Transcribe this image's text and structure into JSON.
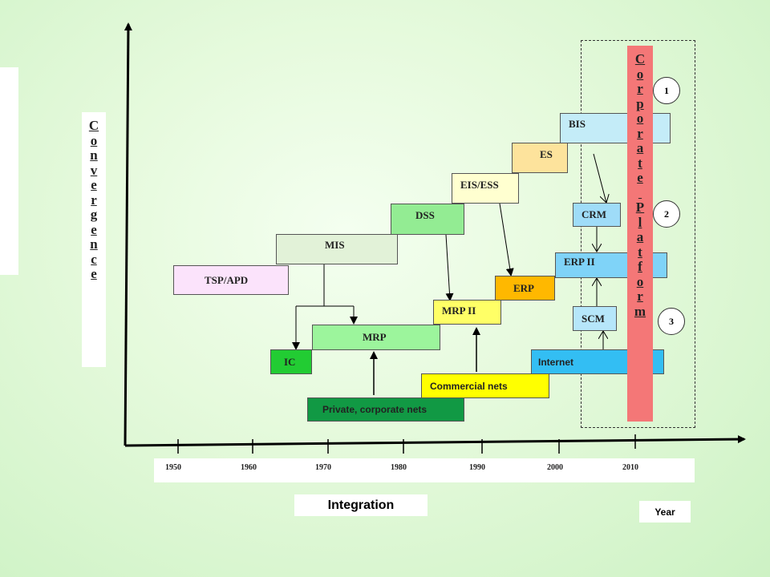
{
  "axes": {
    "y_label_letters": [
      "C",
      "o",
      "n",
      "v",
      "e",
      "r",
      "g",
      "e",
      "n",
      "c",
      "e"
    ],
    "x_label": "Integration",
    "x_unit_label": "Year",
    "years": [
      "1950",
      "1960",
      "1970",
      "1980",
      "1990",
      "2000",
      "2010"
    ]
  },
  "systems": {
    "tsp_apd": "TSP/APD",
    "mis": "MIS",
    "dss": "DSS",
    "eis_ess": "EIS/ESS",
    "es": "ES",
    "bis": "BIS",
    "crm": "CRM",
    "erp_ii": "ERP II",
    "erp": "ERP",
    "mrp_ii": "MRP II",
    "scm": "SCM",
    "mrp": "MRP",
    "ic": "IC",
    "internet": "Internet",
    "commercial_nets": "Commercial nets",
    "private_nets": "Private, corporate nets"
  },
  "platform": {
    "letters": [
      "C",
      "o",
      "r",
      "p",
      "o",
      "r",
      "a",
      "t",
      "e",
      " ",
      "P",
      "l",
      "a",
      "t",
      "f",
      "o",
      "r",
      "m"
    ]
  },
  "levels": [
    "1",
    "2",
    "3"
  ],
  "colors": {
    "tsp_apd": "#fbe3fb",
    "mis": "#e2f2d8",
    "dss": "#93ec93",
    "eis_ess": "#ffffd0",
    "es": "#fde39c",
    "bis": "#c4ecf8",
    "crm": "#9fdcf8",
    "erp_ii": "#7fd3f8",
    "erp": "#ffb800",
    "mrp_ii": "#ffff66",
    "scm": "#b6e6fa",
    "mrp": "#9cf59c",
    "ic": "#22cc33",
    "internet": "#33bef3",
    "commercial_nets": "#ffff00",
    "private_nets": "#119944",
    "platform": "#f47777"
  }
}
